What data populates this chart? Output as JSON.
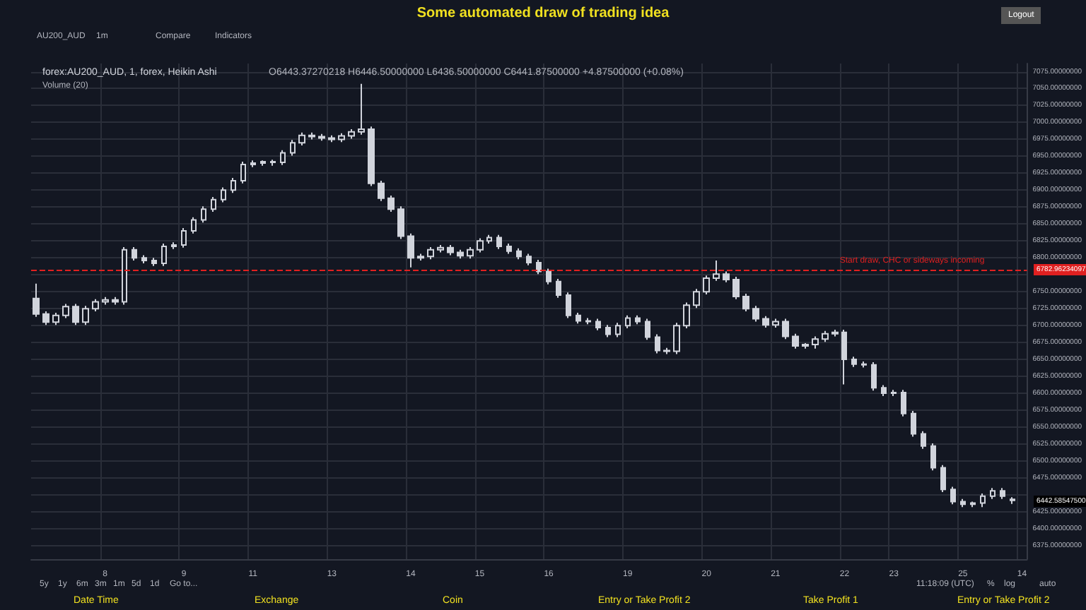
{
  "chart_data": {
    "type": "candlestick",
    "title": "Some automated draw of trading idea",
    "subtitle": "forex:AU200_AUD, 1, forex, Heikin Ashi",
    "categories": [
      null,
      null,
      null,
      null,
      null,
      null,
      null,
      "8",
      null,
      null,
      null,
      null,
      null,
      null,
      null,
      "9",
      null,
      null,
      null,
      null,
      null,
      null,
      "11",
      null,
      null,
      null,
      null,
      null,
      null,
      null,
      "13",
      null,
      null,
      null,
      null,
      null,
      null,
      null,
      "14",
      null,
      null,
      null,
      null,
      null,
      null,
      "15",
      null,
      null,
      null,
      null,
      null,
      null,
      "16",
      null,
      null,
      null,
      null,
      null,
      null,
      null,
      "19",
      null,
      null,
      null,
      null,
      null,
      null,
      null,
      "20",
      null,
      null,
      null,
      null,
      null,
      null,
      "21",
      null,
      null,
      null,
      null,
      null,
      null,
      "22",
      null,
      null,
      null,
      null,
      "23",
      null,
      null,
      null,
      null,
      null,
      null,
      "25",
      null,
      null,
      null,
      null,
      null,
      "14"
    ],
    "series": [
      {
        "color": "#d1d4dc",
        "ohlc": [
          [
            6740,
            6762,
            6713,
            6717
          ],
          [
            6717,
            6721,
            6701,
            6705
          ],
          [
            6705,
            6719,
            6701,
            6715
          ],
          [
            6715,
            6732,
            6711,
            6728
          ],
          [
            6728,
            6732,
            6701,
            6705
          ],
          [
            6705,
            6729,
            6701,
            6725
          ],
          [
            6725,
            6739,
            6721,
            6735
          ],
          [
            6735,
            6742,
            6731,
            6738
          ],
          [
            6738,
            6742,
            6731,
            6735
          ],
          [
            6735,
            6816,
            6731,
            6812
          ],
          [
            6812,
            6816,
            6796,
            6800
          ],
          [
            6800,
            6804,
            6792,
            6796
          ],
          [
            6796,
            6800,
            6788,
            6792
          ],
          [
            6792,
            6821,
            6788,
            6817
          ],
          [
            6817,
            6823,
            6813,
            6819
          ],
          [
            6819,
            6844,
            6815,
            6840
          ],
          [
            6840,
            6860,
            6836,
            6856
          ],
          [
            6856,
            6876,
            6852,
            6872
          ],
          [
            6872,
            6890,
            6868,
            6886
          ],
          [
            6886,
            6904,
            6882,
            6900
          ],
          [
            6900,
            6918,
            6896,
            6914
          ],
          [
            6914,
            6942,
            6910,
            6938
          ],
          [
            6938,
            6944,
            6934,
            6940
          ],
          [
            6940,
            6944,
            6936,
            6942
          ],
          [
            6942,
            6945,
            6936,
            6941
          ],
          [
            6941,
            6959,
            6937,
            6955
          ],
          [
            6955,
            6974,
            6951,
            6970
          ],
          [
            6970,
            6985,
            6966,
            6981
          ],
          [
            6981,
            6985,
            6975,
            6979
          ],
          [
            6979,
            6983,
            6973,
            6977
          ],
          [
            6977,
            6981,
            6971,
            6975
          ],
          [
            6975,
            6984,
            6971,
            6980
          ],
          [
            6980,
            6990,
            6976,
            6986
          ],
          [
            6986,
            7057,
            6982,
            6990
          ],
          [
            6990,
            6994,
            6906,
            6910
          ],
          [
            6910,
            6914,
            6884,
            6888
          ],
          [
            6888,
            6892,
            6868,
            6872
          ],
          [
            6872,
            6876,
            6828,
            6832
          ],
          [
            6832,
            6836,
            6786,
            6800
          ],
          [
            6800,
            6806,
            6796,
            6802
          ],
          [
            6802,
            6816,
            6798,
            6812
          ],
          [
            6812,
            6819,
            6808,
            6815
          ],
          [
            6815,
            6819,
            6804,
            6808
          ],
          [
            6808,
            6812,
            6799,
            6803
          ],
          [
            6803,
            6816,
            6799,
            6812
          ],
          [
            6812,
            6829,
            6808,
            6825
          ],
          [
            6825,
            6834,
            6821,
            6830
          ],
          [
            6830,
            6834,
            6813,
            6817
          ],
          [
            6817,
            6821,
            6806,
            6810
          ],
          [
            6810,
            6814,
            6798,
            6802
          ],
          [
            6802,
            6806,
            6789,
            6793
          ],
          [
            6793,
            6797,
            6776,
            6780
          ],
          [
            6780,
            6784,
            6761,
            6765
          ],
          [
            6765,
            6769,
            6741,
            6745
          ],
          [
            6745,
            6749,
            6711,
            6715
          ],
          [
            6715,
            6719,
            6703,
            6707
          ],
          [
            6707,
            6711,
            6702,
            6706
          ],
          [
            6706,
            6710,
            6693,
            6697
          ],
          [
            6697,
            6701,
            6683,
            6687
          ],
          [
            6687,
            6704,
            6683,
            6700
          ],
          [
            6700,
            6715,
            6696,
            6711
          ],
          [
            6711,
            6715,
            6702,
            6706
          ],
          [
            6706,
            6710,
            6679,
            6683
          ],
          [
            6683,
            6687,
            6659,
            6663
          ],
          [
            6663,
            6667,
            6658,
            6662
          ],
          [
            6662,
            6704,
            6658,
            6700
          ],
          [
            6700,
            6734,
            6696,
            6730
          ],
          [
            6730,
            6754,
            6726,
            6750
          ],
          [
            6750,
            6774,
            6746,
            6770
          ],
          [
            6770,
            6796,
            6766,
            6776
          ],
          [
            6776,
            6780,
            6764,
            6768
          ],
          [
            6768,
            6772,
            6739,
            6743
          ],
          [
            6743,
            6747,
            6721,
            6725
          ],
          [
            6725,
            6729,
            6706,
            6710
          ],
          [
            6710,
            6714,
            6697,
            6701
          ],
          [
            6701,
            6710,
            6697,
            6706
          ],
          [
            6706,
            6710,
            6680,
            6684
          ],
          [
            6684,
            6688,
            6666,
            6670
          ],
          [
            6670,
            6674,
            6666,
            6672
          ],
          [
            6672,
            6684,
            6666,
            6680
          ],
          [
            6680,
            6692,
            6676,
            6688
          ],
          [
            6688,
            6694,
            6684,
            6690
          ],
          [
            6690,
            6694,
            6613,
            6650
          ],
          [
            6650,
            6654,
            6639,
            6643
          ],
          [
            6643,
            6647,
            6638,
            6642
          ],
          [
            6642,
            6646,
            6604,
            6608
          ],
          [
            6608,
            6612,
            6596,
            6600
          ],
          [
            6600,
            6605,
            6596,
            6601
          ],
          [
            6601,
            6605,
            6566,
            6570
          ],
          [
            6570,
            6574,
            6536,
            6540
          ],
          [
            6540,
            6544,
            6518,
            6522
          ],
          [
            6522,
            6526,
            6486,
            6490
          ],
          [
            6490,
            6494,
            6454,
            6458
          ],
          [
            6458,
            6462,
            6436,
            6440
          ],
          [
            6440,
            6444,
            6432,
            6436
          ],
          [
            6436,
            6440,
            6432,
            6438
          ],
          [
            6438,
            6452,
            6432,
            6448
          ],
          [
            6448,
            6460,
            6444,
            6456
          ],
          [
            6456,
            6460,
            6444,
            6448
          ],
          [
            6443.37270218,
            6446.5,
            6436.5,
            6441.875
          ],
          null
        ]
      }
    ],
    "ylim": [
      6355,
      7087
    ],
    "yticks": [
      {
        "value": 6375,
        "label": "6375.00000000"
      },
      {
        "value": 6400,
        "label": "6400.00000000"
      },
      {
        "value": 6425,
        "label": "6425.00000000"
      },
      {
        "value": 6450,
        "label": null
      },
      {
        "value": 6475,
        "label": "6475.00000000"
      },
      {
        "value": 6500,
        "label": "6500.00000000"
      },
      {
        "value": 6525,
        "label": "6525.00000000"
      },
      {
        "value": 6550,
        "label": "6550.00000000"
      },
      {
        "value": 6575,
        "label": "6575.00000000"
      },
      {
        "value": 6600,
        "label": "6600.00000000"
      },
      {
        "value": 6625,
        "label": "6625.00000000"
      },
      {
        "value": 6650,
        "label": "6650.00000000"
      },
      {
        "value": 6675,
        "label": "6675.00000000"
      },
      {
        "value": 6700,
        "label": "6700.00000000"
      },
      {
        "value": 6725,
        "label": "6725.00000000"
      },
      {
        "value": 6750,
        "label": "6750.00000000"
      },
      {
        "value": 6775,
        "label": null
      },
      {
        "value": 6800,
        "label": "6800.00000000"
      },
      {
        "value": 6825,
        "label": "6825.00000000"
      },
      {
        "value": 6850,
        "label": "6850.00000000"
      },
      {
        "value": 6875,
        "label": "6875.00000000"
      },
      {
        "value": 6900,
        "label": "6900.00000000"
      },
      {
        "value": 6925,
        "label": "6925.00000000"
      },
      {
        "value": 6950,
        "label": "6950.00000000"
      },
      {
        "value": 6975,
        "label": "6975.00000000"
      },
      {
        "value": 7000,
        "label": "7000.00000000"
      },
      {
        "value": 7025,
        "label": "7025.00000000"
      },
      {
        "value": 7050,
        "label": "7050.00000000"
      },
      {
        "value": 7075,
        "label": "7075.00000000"
      }
    ],
    "grid": true,
    "ref_lines": [
      {
        "axis": "y",
        "value": 6783,
        "label": "Start draw, CHC or sideways incoming",
        "color": "#e02020",
        "line_style": "dashed"
      }
    ],
    "annotations": [
      "O6443.37270218 H6446.50000000 L6436.50000000 C6441.87500000 +4.87500000 (+0.08%)",
      "Volume (20)",
      "Logout",
      "AU200_AUD",
      "1m",
      "Compare",
      "Indicators",
      "5y",
      "1y",
      "6m",
      "3m",
      "1m",
      "5d",
      "1d",
      "Go to...",
      "11:18:09 (UTC)",
      "%",
      "log",
      "auto",
      "Date Time",
      "Exchange",
      "Coin",
      "Entry or Take Profit 2",
      "Take Profit 1",
      "Entry or Take Profit 2",
      "6442.58547500",
      "6782.96234097"
    ]
  }
}
